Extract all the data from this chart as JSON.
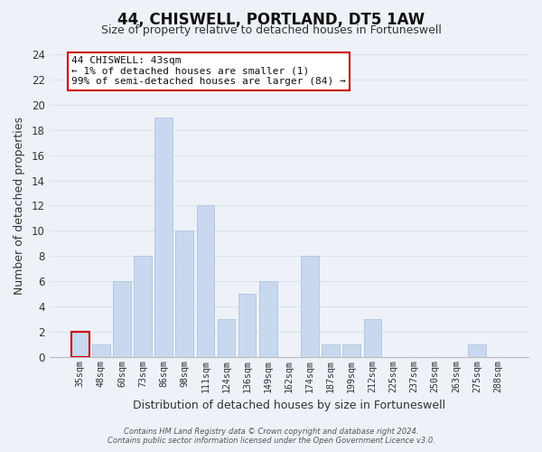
{
  "title": "44, CHISWELL, PORTLAND, DT5 1AW",
  "subtitle": "Size of property relative to detached houses in Fortuneswell",
  "xlabel": "Distribution of detached houses by size in Fortuneswell",
  "ylabel": "Number of detached properties",
  "bar_labels": [
    "35sqm",
    "48sqm",
    "60sqm",
    "73sqm",
    "86sqm",
    "98sqm",
    "111sqm",
    "124sqm",
    "136sqm",
    "149sqm",
    "162sqm",
    "174sqm",
    "187sqm",
    "199sqm",
    "212sqm",
    "225sqm",
    "237sqm",
    "250sqm",
    "263sqm",
    "275sqm",
    "288sqm"
  ],
  "bar_values": [
    2,
    1,
    6,
    8,
    19,
    10,
    12,
    3,
    5,
    6,
    0,
    8,
    1,
    1,
    3,
    0,
    0,
    0,
    0,
    1,
    0
  ],
  "bar_color": "#c8d8ee",
  "bar_edge_color": "#b0c4de",
  "highlight_bar_index": 0,
  "highlight_edge_color": "#cc0000",
  "ylim": [
    0,
    24
  ],
  "yticks": [
    0,
    2,
    4,
    6,
    8,
    10,
    12,
    14,
    16,
    18,
    20,
    22,
    24
  ],
  "annotation_title": "44 CHISWELL: 43sqm",
  "annotation_line1": "← 1% of detached houses are smaller (1)",
  "annotation_line2": "99% of semi-detached houses are larger (84) →",
  "annotation_box_color": "#ffffff",
  "annotation_box_edge": "#cc0000",
  "footer_line1": "Contains HM Land Registry data © Crown copyright and database right 2024.",
  "footer_line2": "Contains public sector information licensed under the Open Government Licence v3.0.",
  "grid_color": "#d8e4f0",
  "background_color": "#eef2f8",
  "title_fontsize": 12,
  "subtitle_fontsize": 9,
  "ylabel_fontsize": 9,
  "xlabel_fontsize": 9
}
